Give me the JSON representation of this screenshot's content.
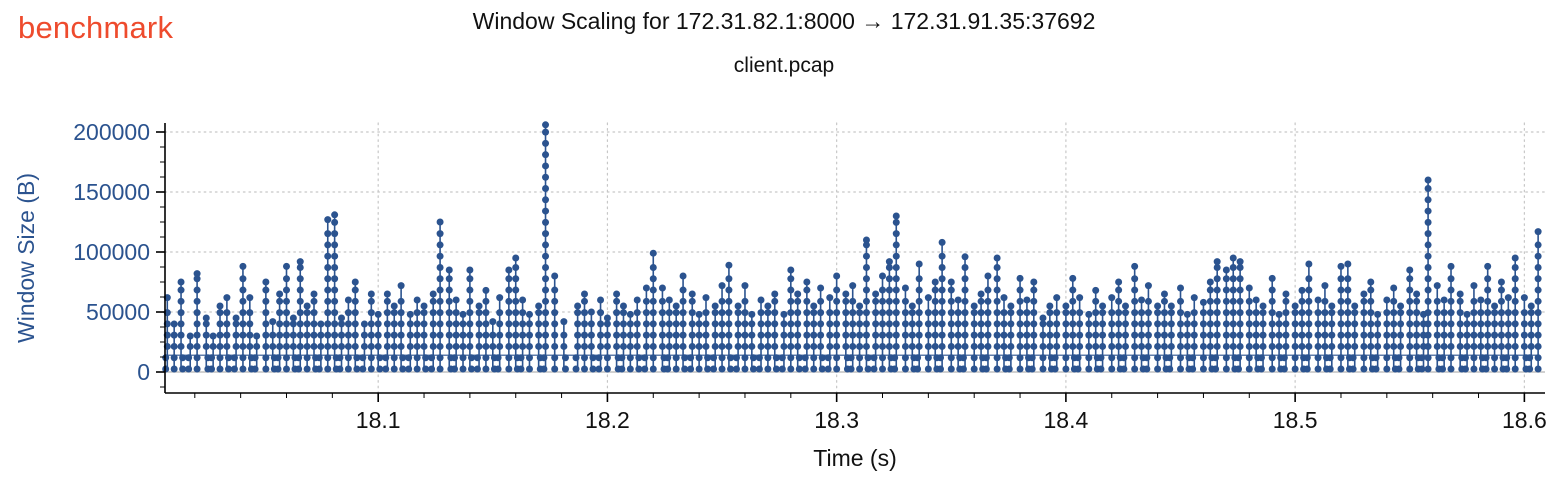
{
  "header": {
    "brand": "benchmark",
    "brand_color": "#ee4b2d"
  },
  "chart_data": {
    "type": "line",
    "title": "Window Scaling for 172.31.82.1:8000 → 172.31.91.35:37692",
    "subtitle": "client.pcap",
    "xlabel": "Time (s)",
    "ylabel": "Window Size (B)",
    "xlim": [
      18.007,
      18.609
    ],
    "ylim": [
      -17500,
      207500
    ],
    "xticks": [
      18.1,
      18.2,
      18.3,
      18.4,
      18.5,
      18.6
    ],
    "yticks": [
      0,
      50000,
      100000,
      150000,
      200000
    ],
    "x_minor_step": 0.02,
    "y_minor_step": 12500,
    "grid": "dotted gridlines at major ticks, solid light line at y=0",
    "legend": "none",
    "marker_color": "#2b538f",
    "grid_color": "#c7c7c7",
    "zero_line_color": "#b3b3b3",
    "axis_color": "#000000",
    "ytick_label_color": "#2b538f",
    "xtick_label_color": "#111111",
    "connector_level": 14000,
    "stem_base": 2500,
    "dot_step": 9400,
    "stems_format": "[time_s, peak_window_size_B] — each stem is a vertical run of samples from the low window band up to the peak",
    "stems": [
      [
        18.008,
        62000
      ],
      [
        18.011,
        40000
      ],
      [
        18.014,
        75000
      ],
      [
        18.018,
        30000
      ],
      [
        18.021,
        82000
      ],
      [
        18.025,
        45000
      ],
      [
        18.028,
        30000
      ],
      [
        18.031,
        55000
      ],
      [
        18.034,
        62000
      ],
      [
        18.038,
        45000
      ],
      [
        18.041,
        88000
      ],
      [
        18.044,
        62000
      ],
      [
        18.047,
        30000
      ],
      [
        18.051,
        75000
      ],
      [
        18.054,
        42000
      ],
      [
        18.057,
        65000
      ],
      [
        18.06,
        88000
      ],
      [
        18.063,
        45000
      ],
      [
        18.066,
        92000
      ],
      [
        18.069,
        55000
      ],
      [
        18.072,
        65000
      ],
      [
        18.075,
        40000
      ],
      [
        18.078,
        127000
      ],
      [
        18.081,
        131000
      ],
      [
        18.084,
        45000
      ],
      [
        18.087,
        60000
      ],
      [
        18.09,
        75000
      ],
      [
        18.094,
        40000
      ],
      [
        18.097,
        65000
      ],
      [
        18.1,
        48000
      ],
      [
        18.104,
        65000
      ],
      [
        18.107,
        55000
      ],
      [
        18.11,
        72000
      ],
      [
        18.114,
        48000
      ],
      [
        18.117,
        60000
      ],
      [
        18.12,
        55000
      ],
      [
        18.124,
        65000
      ],
      [
        18.127,
        125000
      ],
      [
        18.131,
        85000
      ],
      [
        18.134,
        60000
      ],
      [
        18.137,
        48000
      ],
      [
        18.14,
        85000
      ],
      [
        18.144,
        55000
      ],
      [
        18.147,
        68000
      ],
      [
        18.15,
        42000
      ],
      [
        18.153,
        62000
      ],
      [
        18.157,
        85000
      ],
      [
        18.16,
        95000
      ],
      [
        18.163,
        60000
      ],
      [
        18.166,
        48000
      ],
      [
        18.17,
        55000
      ],
      [
        18.173,
        206000
      ],
      [
        18.177,
        80000
      ],
      [
        18.181,
        42000
      ],
      [
        18.187,
        55000
      ],
      [
        18.19,
        65000
      ],
      [
        18.193,
        50000
      ],
      [
        18.197,
        60000
      ],
      [
        18.2,
        45000
      ],
      [
        18.204,
        65000
      ],
      [
        18.207,
        55000
      ],
      [
        18.21,
        48000
      ],
      [
        18.213,
        60000
      ],
      [
        18.217,
        70000
      ],
      [
        18.22,
        99000
      ],
      [
        18.224,
        70000
      ],
      [
        18.227,
        60000
      ],
      [
        18.23,
        55000
      ],
      [
        18.233,
        80000
      ],
      [
        18.237,
        65000
      ],
      [
        18.24,
        48000
      ],
      [
        18.243,
        62000
      ],
      [
        18.247,
        55000
      ],
      [
        18.25,
        72000
      ],
      [
        18.253,
        89000
      ],
      [
        18.257,
        55000
      ],
      [
        18.26,
        72000
      ],
      [
        18.263,
        48000
      ],
      [
        18.267,
        60000
      ],
      [
        18.27,
        55000
      ],
      [
        18.273,
        65000
      ],
      [
        18.277,
        48000
      ],
      [
        18.28,
        85000
      ],
      [
        18.283,
        65000
      ],
      [
        18.287,
        75000
      ],
      [
        18.29,
        55000
      ],
      [
        18.293,
        70000
      ],
      [
        18.297,
        62000
      ],
      [
        18.3,
        80000
      ],
      [
        18.304,
        65000
      ],
      [
        18.307,
        72000
      ],
      [
        18.31,
        55000
      ],
      [
        18.313,
        110000
      ],
      [
        18.317,
        65000
      ],
      [
        18.32,
        80000
      ],
      [
        18.323,
        92000
      ],
      [
        18.326,
        130000
      ],
      [
        18.33,
        70000
      ],
      [
        18.333,
        55000
      ],
      [
        18.336,
        90000
      ],
      [
        18.34,
        62000
      ],
      [
        18.343,
        75000
      ],
      [
        18.346,
        108000
      ],
      [
        18.35,
        75000
      ],
      [
        18.353,
        60000
      ],
      [
        18.356,
        96000
      ],
      [
        18.36,
        55000
      ],
      [
        18.363,
        65000
      ],
      [
        18.366,
        80000
      ],
      [
        18.37,
        95000
      ],
      [
        18.373,
        62000
      ],
      [
        18.376,
        55000
      ],
      [
        18.38,
        78000
      ],
      [
        18.383,
        60000
      ],
      [
        18.386,
        75000
      ],
      [
        18.39,
        45000
      ],
      [
        18.393,
        55000
      ],
      [
        18.396,
        62000
      ],
      [
        18.4,
        55000
      ],
      [
        18.403,
        78000
      ],
      [
        18.406,
        62000
      ],
      [
        18.41,
        48000
      ],
      [
        18.413,
        68000
      ],
      [
        18.416,
        55000
      ],
      [
        18.42,
        62000
      ],
      [
        18.423,
        75000
      ],
      [
        18.426,
        55000
      ],
      [
        18.43,
        88000
      ],
      [
        18.433,
        60000
      ],
      [
        18.436,
        72000
      ],
      [
        18.44,
        55000
      ],
      [
        18.443,
        65000
      ],
      [
        18.446,
        55000
      ],
      [
        18.45,
        70000
      ],
      [
        18.453,
        48000
      ],
      [
        18.456,
        62000
      ],
      [
        18.46,
        58000
      ],
      [
        18.463,
        75000
      ],
      [
        18.466,
        92000
      ],
      [
        18.47,
        85000
      ],
      [
        18.473,
        95000
      ],
      [
        18.476,
        92000
      ],
      [
        18.48,
        70000
      ],
      [
        18.483,
        60000
      ],
      [
        18.486,
        55000
      ],
      [
        18.49,
        78000
      ],
      [
        18.493,
        48000
      ],
      [
        18.496,
        65000
      ],
      [
        18.5,
        55000
      ],
      [
        18.503,
        68000
      ],
      [
        18.506,
        90000
      ],
      [
        18.51,
        60000
      ],
      [
        18.513,
        72000
      ],
      [
        18.516,
        55000
      ],
      [
        18.52,
        88000
      ],
      [
        18.523,
        90000
      ],
      [
        18.526,
        55000
      ],
      [
        18.53,
        65000
      ],
      [
        18.533,
        75000
      ],
      [
        18.536,
        48000
      ],
      [
        18.54,
        60000
      ],
      [
        18.543,
        70000
      ],
      [
        18.546,
        55000
      ],
      [
        18.55,
        85000
      ],
      [
        18.553,
        65000
      ],
      [
        18.556,
        48000
      ],
      [
        18.558,
        160000
      ],
      [
        18.562,
        72000
      ],
      [
        18.565,
        60000
      ],
      [
        18.568,
        88000
      ],
      [
        18.572,
        65000
      ],
      [
        18.575,
        48000
      ],
      [
        18.578,
        72000
      ],
      [
        18.581,
        60000
      ],
      [
        18.584,
        88000
      ],
      [
        18.587,
        55000
      ],
      [
        18.59,
        75000
      ],
      [
        18.593,
        62000
      ],
      [
        18.596,
        95000
      ],
      [
        18.6,
        62000
      ],
      [
        18.603,
        55000
      ],
      [
        18.606,
        117000
      ]
    ]
  }
}
